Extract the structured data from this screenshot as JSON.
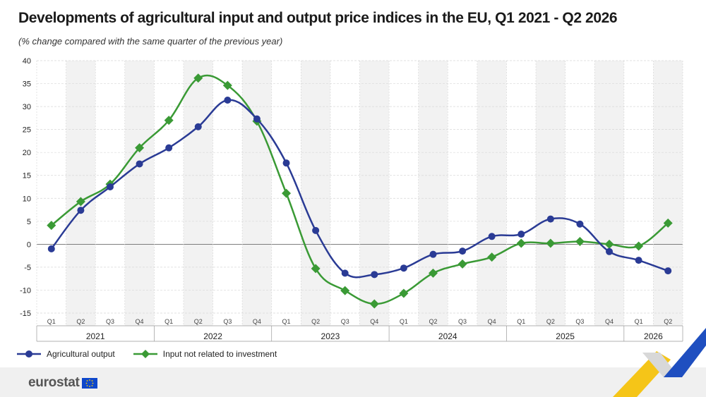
{
  "title": "Developments of agricultural input and output price indices in the EU, Q1 2021 - Q2 2026",
  "subtitle": "(% change compared with the same quarter of the previous year)",
  "brand": "eurostat",
  "colors": {
    "output": "#2a3b95",
    "input": "#3a9a35",
    "band": "#f2f2f2",
    "grid": "#d8d8d8"
  },
  "chart_data": {
    "type": "line",
    "title": "Developments of agricultural input and output price indices in the EU, Q1 2021 - Q2 2026",
    "ylabel": "",
    "xlabel": "",
    "ylim": [
      -15,
      40
    ],
    "yticks": [
      40,
      35,
      30,
      25,
      20,
      15,
      10,
      5,
      0,
      -5,
      -10,
      -15
    ],
    "x": [
      "Q1",
      "Q2",
      "Q3",
      "Q4",
      "Q1",
      "Q2",
      "Q3",
      "Q4",
      "Q1",
      "Q2",
      "Q3",
      "Q4",
      "Q1",
      "Q2",
      "Q3",
      "Q4",
      "Q1",
      "Q2",
      "Q3",
      "Q4",
      "Q1",
      "Q2"
    ],
    "years": [
      {
        "label": "2021",
        "quarters": 4
      },
      {
        "label": "2022",
        "quarters": 4
      },
      {
        "label": "2023",
        "quarters": 4
      },
      {
        "label": "2024",
        "quarters": 4
      },
      {
        "label": "2025",
        "quarters": 4
      },
      {
        "label": "2026",
        "quarters": 2
      }
    ],
    "series": [
      {
        "name": "Agricultural output",
        "marker": "circle",
        "values": [
          -1.0,
          7.4,
          12.5,
          17.5,
          21.0,
          25.6,
          31.4,
          27.3,
          17.7,
          3.0,
          -6.3,
          -6.6,
          -5.2,
          -2.2,
          -1.5,
          1.7,
          2.2,
          5.5,
          4.4,
          -1.6,
          -3.5,
          -5.8
        ]
      },
      {
        "name": "Input not related to investment",
        "marker": "diamond",
        "values": [
          4.1,
          9.3,
          13.1,
          21.0,
          27.0,
          36.2,
          34.6,
          26.8,
          11.1,
          -5.3,
          -10.1,
          -13.0,
          -10.7,
          -6.3,
          -4.3,
          -2.8,
          0.2,
          0.2,
          0.6,
          0.0,
          -0.4,
          4.6
        ]
      }
    ],
    "grid": true,
    "legend_position": "bottom-left"
  }
}
